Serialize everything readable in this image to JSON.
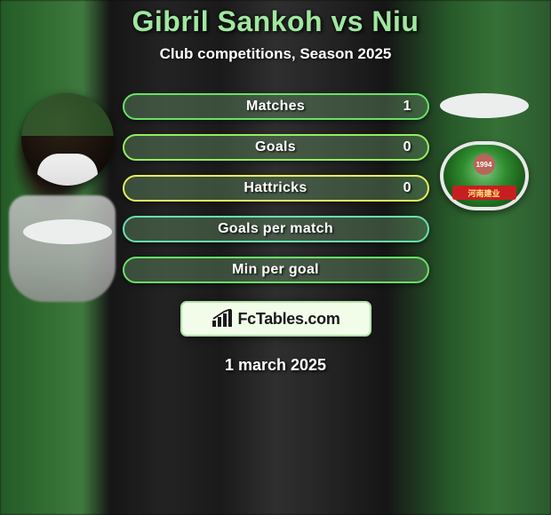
{
  "title": "Gibril Sankoh vs Niu",
  "subtitle": "Club competitions, Season 2025",
  "date": "1 march 2025",
  "logo_text": "FcTables.com",
  "club_year": "1994",
  "club_ribbon": "河南建业",
  "colors": {
    "title": "#9fe89f",
    "pill_bg": "rgba(106,150,106,0.42)",
    "pill_borders": [
      "#66e266",
      "#93ef5d",
      "#e7ef5d",
      "#66e2b0",
      "#66e266"
    ],
    "logo_border": "#b2e2aa",
    "logo_bg": "#f1fde9"
  },
  "stats": [
    {
      "label": "Matches",
      "value": "1",
      "border_class": "p-green"
    },
    {
      "label": "Goals",
      "value": "0",
      "border_class": "p-lime"
    },
    {
      "label": "Hattricks",
      "value": "0",
      "border_class": "p-yellow"
    },
    {
      "label": "Goals per match",
      "value": "",
      "border_class": "p-teal"
    },
    {
      "label": "Min per goal",
      "value": "",
      "border_class": "p-green"
    }
  ]
}
